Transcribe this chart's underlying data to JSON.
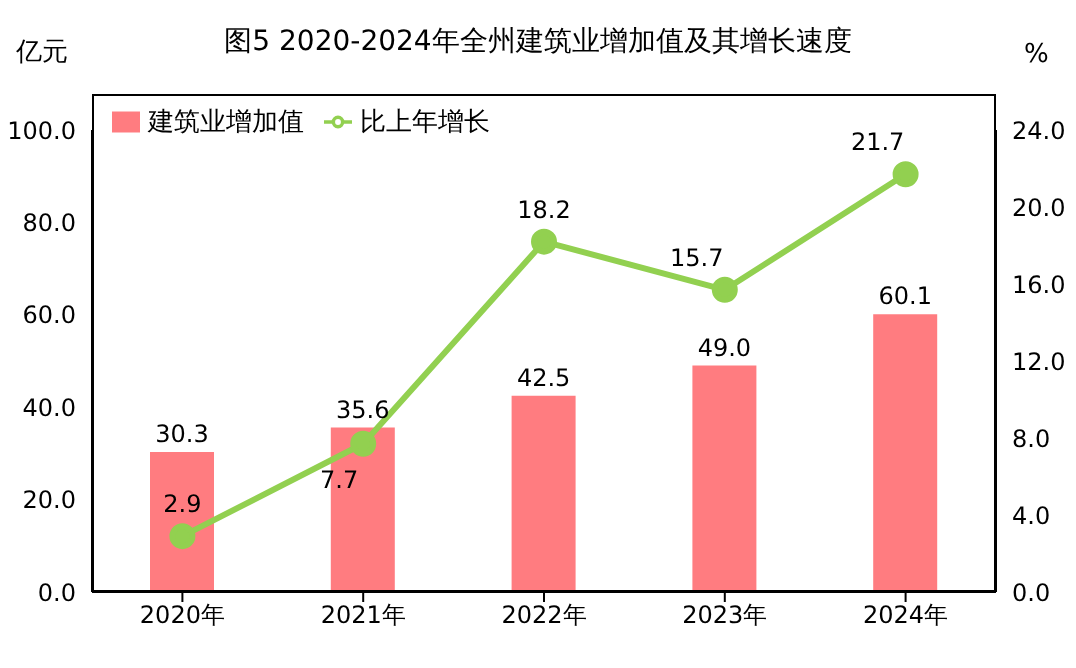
{
  "chart_data": {
    "type": "bar",
    "title": "图5  2020-2024年全州建筑业增加值及其增长速度",
    "ylabel": "亿元",
    "y2label": "%",
    "categories": [
      "2020年",
      "2021年",
      "2022年",
      "2023年",
      "2024年"
    ],
    "series": [
      {
        "name": "建筑业增加值",
        "color": "#ff7c80",
        "values": [
          30.3,
          35.6,
          42.5,
          49.0,
          60.1
        ],
        "value_labels": [
          "30.3",
          "35.6",
          "42.5",
          "49.0",
          "60.1"
        ]
      },
      {
        "name": "比上年增长",
        "type": "line",
        "axis": "y2",
        "color": "#92d050",
        "values": [
          2.9,
          7.7,
          18.2,
          15.7,
          21.7
        ]
      }
    ],
    "ylim": [
      0,
      100
    ],
    "yticks": [
      {
        "value": 0,
        "label": "0.0"
      },
      {
        "value": 20,
        "label": "20.0"
      },
      {
        "value": 40,
        "label": "40.0"
      },
      {
        "value": 60,
        "label": "60.0"
      },
      {
        "value": 80,
        "label": "80.0"
      },
      {
        "value": 100,
        "label": "100.0"
      }
    ],
    "y2lim": [
      0,
      24
    ],
    "y2ticks": [
      {
        "value": 0,
        "label": "0.0"
      },
      {
        "value": 4,
        "label": "4.0"
      },
      {
        "value": 8,
        "label": "8.0"
      },
      {
        "value": 12,
        "label": "12.0"
      },
      {
        "value": 16,
        "label": "16.0"
      },
      {
        "value": 20,
        "label": "20.0"
      },
      {
        "value": 24,
        "label": "24.0"
      }
    ],
    "data_labels": true,
    "grid": false,
    "legend": "top left",
    "marker": "circle",
    "line_style": "solid"
  }
}
